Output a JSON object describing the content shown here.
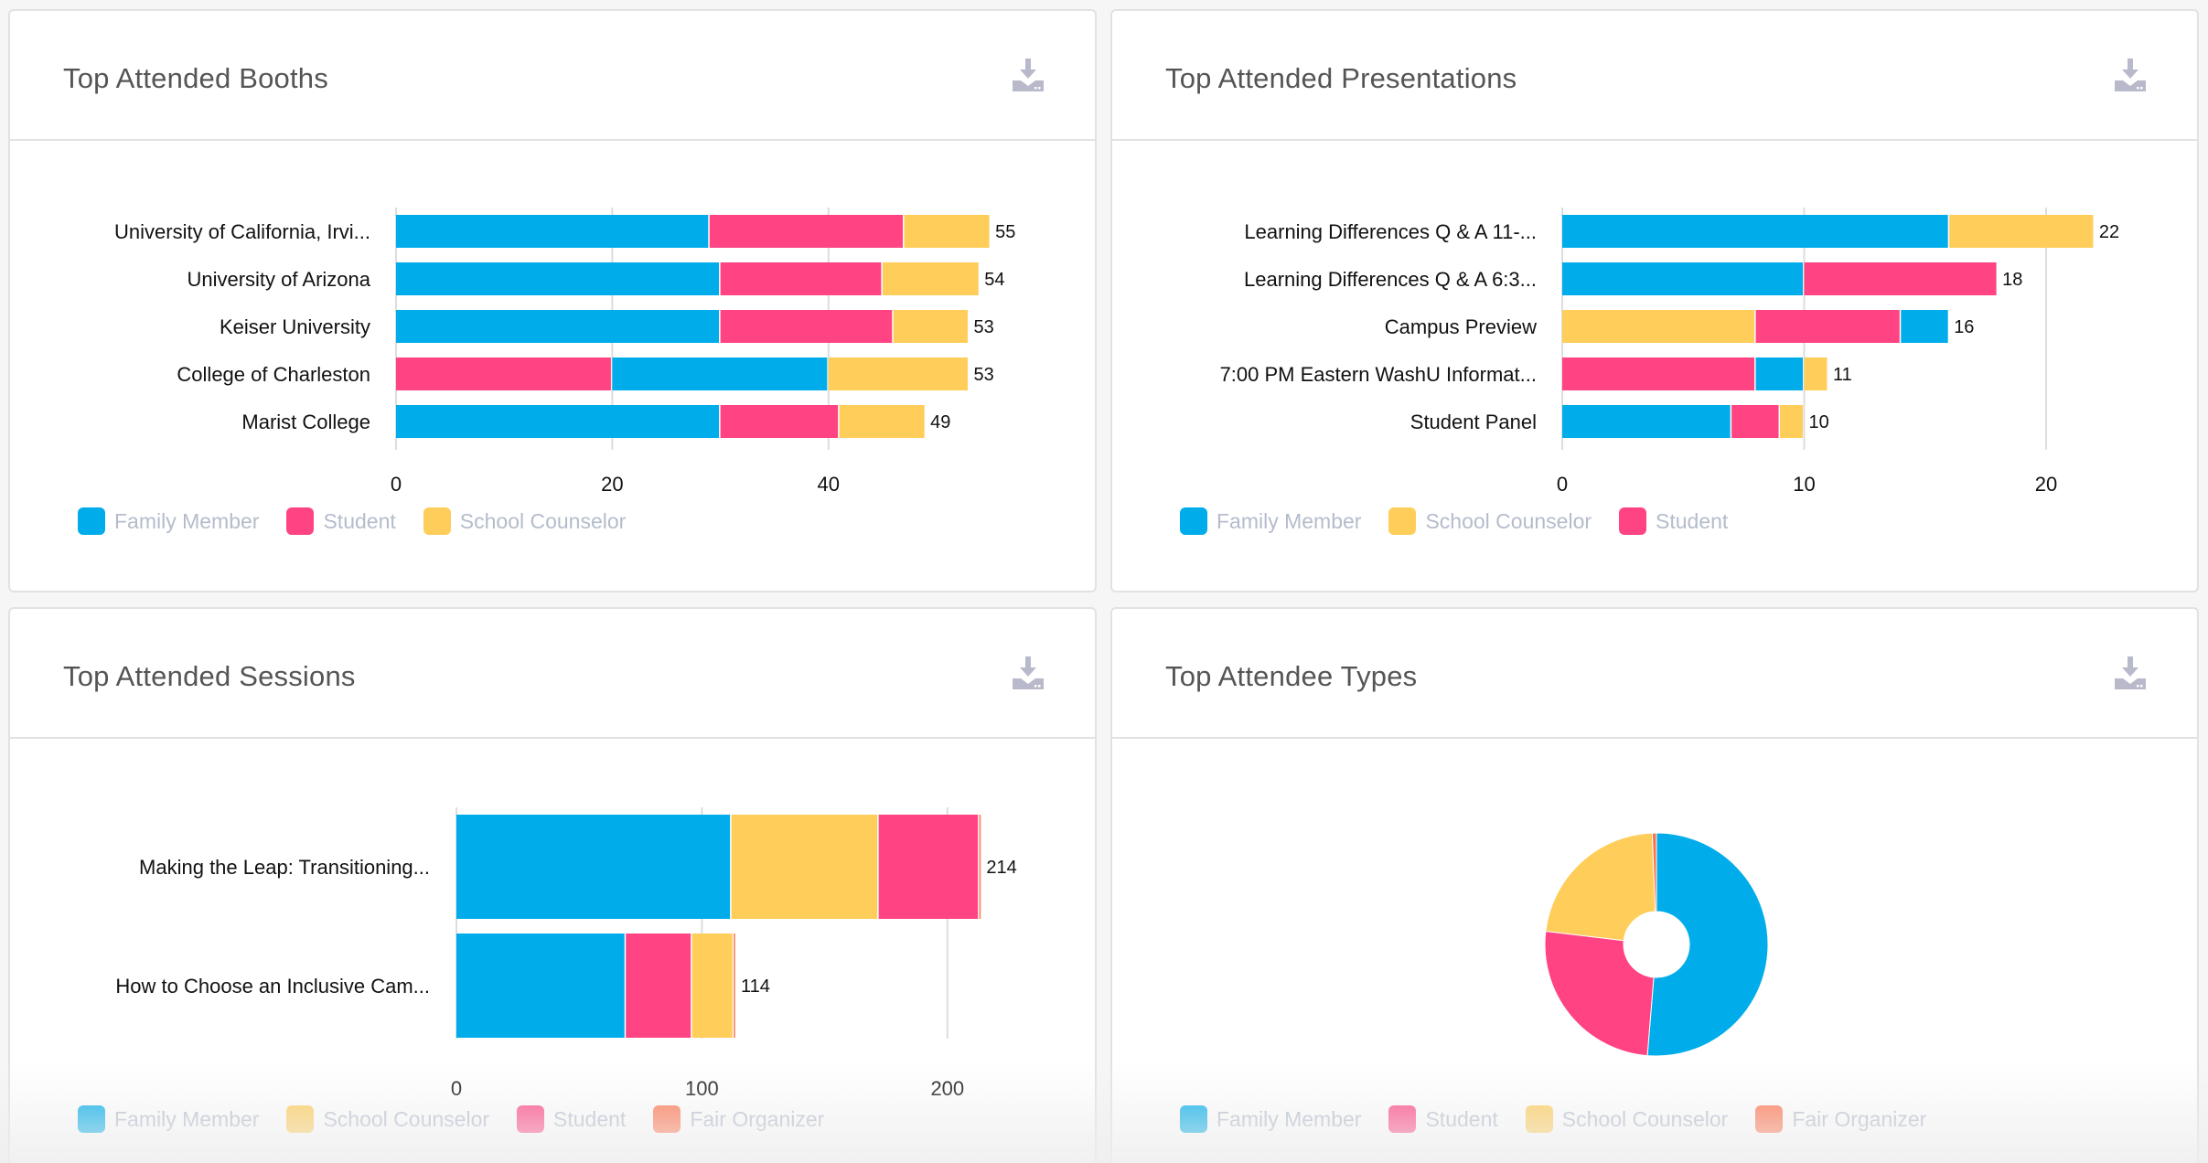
{
  "colors": {
    "family_member": "#00adea",
    "student": "#ff4383",
    "school_counselor": "#ffcd59",
    "fair_organizer": "#ff724c"
  },
  "panels": [
    {
      "title": "Top Attended Booths",
      "download_icon": "download-icon",
      "legend": [
        "Family Member",
        "Student",
        "School Counselor"
      ]
    },
    {
      "title": "Top Attended Presentations",
      "download_icon": "download-icon",
      "legend": [
        "Family Member",
        "School Counselor",
        "Student"
      ]
    },
    {
      "title": "Top Attended Sessions",
      "download_icon": "download-icon",
      "legend": [
        "Family Member",
        "School Counselor",
        "Student",
        "Fair Organizer"
      ]
    },
    {
      "title": "Top Attendee Types",
      "download_icon": "download-icon",
      "legend": [
        "Family Member",
        "Student",
        "School Counselor",
        "Fair Organizer"
      ]
    }
  ],
  "chart_data": [
    {
      "type": "bar",
      "orientation": "horizontal",
      "stacked": true,
      "title": "Top Attended Booths",
      "categories": [
        "University of California, Irvi...",
        "University of Arizona",
        "Keiser University",
        "College of Charleston",
        "Marist College"
      ],
      "totals": [
        55,
        54,
        53,
        53,
        49
      ],
      "series": [
        {
          "name": "Family Member",
          "values": [
            29,
            30,
            30,
            20,
            30
          ]
        },
        {
          "name": "Student",
          "values": [
            18,
            15,
            16,
            20,
            11
          ]
        },
        {
          "name": "School Counselor",
          "values": [
            8,
            9,
            7,
            13,
            8
          ]
        }
      ],
      "segment_order": [
        [
          "Family Member",
          "Student",
          "School Counselor"
        ],
        [
          "Family Member",
          "Student",
          "School Counselor"
        ],
        [
          "Family Member",
          "Student",
          "School Counselor"
        ],
        [
          "Student",
          "Family Member",
          "School Counselor"
        ],
        [
          "Family Member",
          "Student",
          "School Counselor"
        ]
      ],
      "xticks": [
        0,
        20,
        40
      ],
      "xlim": [
        0,
        58
      ],
      "grid": true,
      "legend": "bottom-left"
    },
    {
      "type": "bar",
      "orientation": "horizontal",
      "stacked": true,
      "title": "Top Attended Presentations",
      "categories": [
        "Learning Differences Q & A 11-...",
        "Learning Differences Q & A 6:3...",
        "Campus Preview",
        "7:00 PM Eastern WashU Informat...",
        "Student Panel"
      ],
      "totals": [
        22,
        18,
        16,
        11,
        10
      ],
      "series": [
        {
          "name": "Family Member",
          "values": [
            16,
            10,
            2,
            2,
            7
          ]
        },
        {
          "name": "School Counselor",
          "values": [
            6,
            0,
            8,
            1,
            1
          ]
        },
        {
          "name": "Student",
          "values": [
            0,
            8,
            6,
            8,
            2
          ]
        }
      ],
      "segment_order": [
        [
          "Family Member",
          "School Counselor"
        ],
        [
          "Family Member",
          "Student"
        ],
        [
          "School Counselor",
          "Student",
          "Family Member"
        ],
        [
          "Student",
          "Family Member",
          "School Counselor"
        ],
        [
          "Family Member",
          "Student",
          "School Counselor"
        ]
      ],
      "xticks": [
        0,
        10,
        20
      ],
      "xlim": [
        0,
        23
      ],
      "grid": true,
      "legend": "bottom-left"
    },
    {
      "type": "bar",
      "orientation": "horizontal",
      "stacked": true,
      "title": "Top Attended Sessions",
      "categories": [
        "Making the Leap: Transitioning...",
        "How to Choose an Inclusive Cam..."
      ],
      "totals": [
        214,
        114
      ],
      "series": [
        {
          "name": "Family Member",
          "values": [
            112,
            69
          ]
        },
        {
          "name": "School Counselor",
          "values": [
            60,
            17
          ]
        },
        {
          "name": "Student",
          "values": [
            41,
            27
          ]
        },
        {
          "name": "Fair Organizer",
          "values": [
            1,
            1
          ]
        }
      ],
      "segment_order": [
        [
          "Family Member",
          "School Counselor",
          "Student",
          "Fair Organizer"
        ],
        [
          "Family Member",
          "Student",
          "School Counselor",
          "Fair Organizer"
        ]
      ],
      "xticks": [
        0,
        100,
        200
      ],
      "xlim": [
        0,
        230
      ],
      "grid": true,
      "legend": "bottom-left"
    },
    {
      "type": "pie",
      "donut": true,
      "title": "Top Attendee Types",
      "labels": [
        "Family Member",
        "Student",
        "School Counselor",
        "Fair Organizer"
      ],
      "values": [
        51.3,
        25.6,
        22.5,
        0.6
      ],
      "unit": "percent (estimated)",
      "legend": "bottom-left"
    }
  ]
}
